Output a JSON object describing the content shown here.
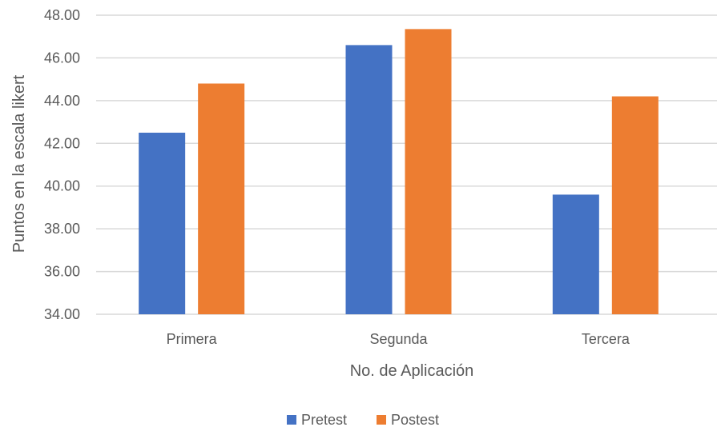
{
  "chart_data": {
    "type": "bar",
    "title": "",
    "xlabel": "No. de Aplicación",
    "ylabel": "Puntos en la escala likert",
    "categories": [
      "Primera",
      "Segunda",
      "Tercera"
    ],
    "series": [
      {
        "name": "Pretest",
        "color": "#4472C4",
        "values": [
          42.5,
          46.6,
          39.6
        ]
      },
      {
        "name": "Postest",
        "color": "#ED7D31",
        "values": [
          44.8,
          47.35,
          44.2
        ]
      }
    ],
    "ylim": [
      34,
      48
    ],
    "yticks": [
      "34.00",
      "36.00",
      "38.00",
      "40.00",
      "42.00",
      "44.00",
      "46.00",
      "48.00"
    ],
    "grid": true,
    "legend_position": "bottom"
  }
}
